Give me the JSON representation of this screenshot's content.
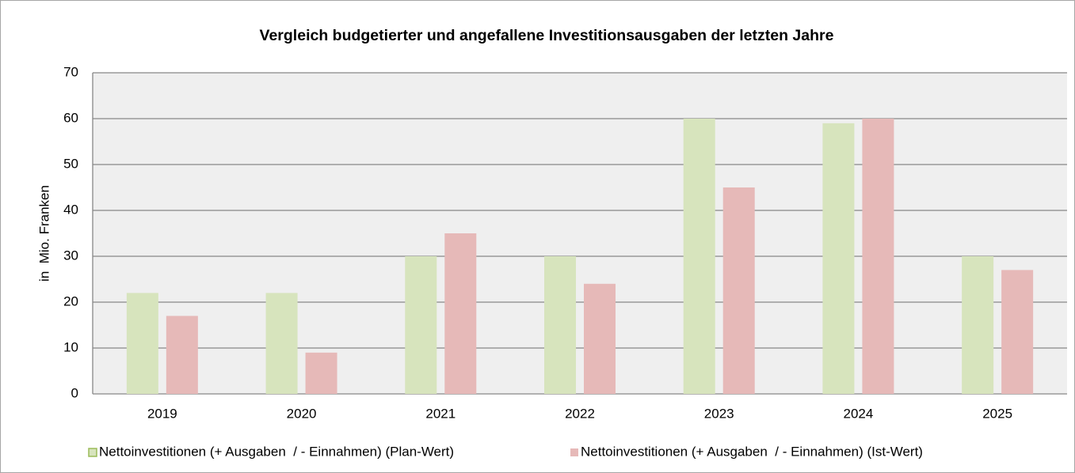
{
  "chart_data": {
    "type": "bar",
    "title": "Vergleich budgetierter und angefallene Investitionsausgaben der letzten Jahre",
    "y_label": "in  Mio. Franken",
    "categories": [
      "2019",
      "2020",
      "2021",
      "2022",
      "2023",
      "2024",
      "2025"
    ],
    "series": [
      {
        "name": "Nettoinvestitionen (+ Ausgaben  / - Einnahmen) (Plan-Wert)",
        "color": "#d7e4bd",
        "values": [
          22,
          22,
          30,
          30,
          60,
          59,
          30
        ]
      },
      {
        "name": "Nettoinvestitionen (+ Ausgaben  / - Einnahmen) (Ist-Wert)",
        "color": "#e6b9b8",
        "values": [
          17,
          9,
          35,
          24,
          45,
          60,
          27
        ]
      }
    ],
    "ylim": [
      0,
      70
    ],
    "yticks": [
      0,
      10,
      20,
      30,
      40,
      50,
      60,
      70
    ],
    "grid": true,
    "legend": "bottom"
  }
}
